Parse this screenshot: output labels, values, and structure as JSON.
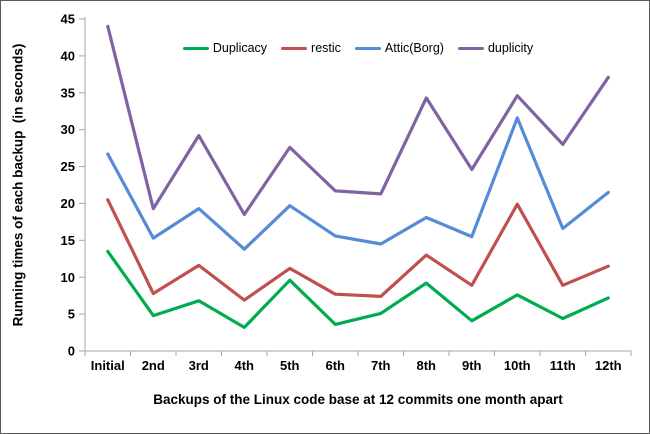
{
  "chart_data": {
    "type": "line",
    "title": "",
    "xlabel": "Backups of the Linux code base at 12 commits one month apart",
    "ylabel": "Running times of each backup  (in seconds)",
    "ylim": [
      0,
      45
    ],
    "yticks": [
      0,
      5,
      10,
      15,
      20,
      25,
      30,
      35,
      40,
      45
    ],
    "grid": false,
    "legend_position": "top-center",
    "categories": [
      "Initial",
      "2nd",
      "3rd",
      "4th",
      "5th",
      "6th",
      "7th",
      "8th",
      "9th",
      "10th",
      "11th",
      "12th"
    ],
    "series": [
      {
        "name": "Duplicacy",
        "color": "#00AC50",
        "values": [
          13.5,
          4.8,
          6.8,
          3.2,
          9.6,
          3.6,
          5.1,
          9.2,
          4.1,
          7.6,
          4.4,
          7.2
        ]
      },
      {
        "name": "restic",
        "color": "#C0504D",
        "values": [
          20.5,
          7.8,
          11.6,
          6.9,
          11.2,
          7.7,
          7.4,
          13.0,
          8.9,
          19.9,
          8.9,
          11.5
        ]
      },
      {
        "name": "Attic(Borg)",
        "color": "#568BD8",
        "values": [
          26.7,
          15.3,
          19.3,
          13.8,
          19.7,
          15.6,
          14.5,
          18.1,
          15.5,
          31.6,
          16.6,
          21.5
        ]
      },
      {
        "name": "duplicity",
        "color": "#8064A2",
        "values": [
          44.0,
          19.3,
          29.2,
          18.5,
          27.6,
          21.7,
          21.3,
          34.3,
          24.6,
          34.6,
          28.0,
          37.1
        ]
      }
    ],
    "axis_color": "#A6A6A6"
  }
}
